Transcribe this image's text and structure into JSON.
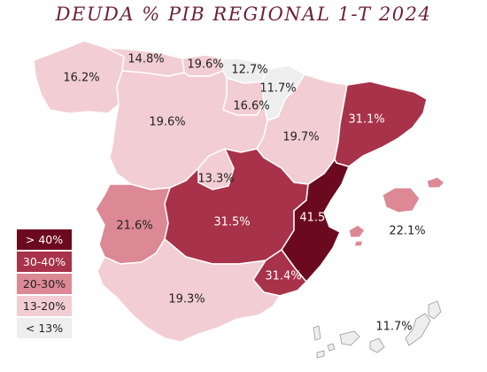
{
  "title": "DEUDA % PIB REGIONAL 1-T 2024",
  "colors": {
    "gt40": "#6b0a1f",
    "30_40": "#a83249",
    "20_30": "#dc8895",
    "13_20": "#f2cdd3",
    "lt13": "#eeeeee",
    "border": "#ffffff",
    "text_dark": "#222222",
    "text_light": "#ffffff"
  },
  "regions": [
    {
      "name": "Galicia",
      "value": "16.2%",
      "bucket": "13_20"
    },
    {
      "name": "Asturias",
      "value": "14.8%",
      "bucket": "13_20"
    },
    {
      "name": "Cantabria",
      "value": "19.6%",
      "bucket": "13_20"
    },
    {
      "name": "País Vasco",
      "value": "12.7%",
      "bucket": "lt13"
    },
    {
      "name": "Navarra",
      "value": "11.7%",
      "bucket": "lt13"
    },
    {
      "name": "La Rioja",
      "value": "16.6%",
      "bucket": "13_20"
    },
    {
      "name": "Castilla y León",
      "value": "19.6%",
      "bucket": "13_20"
    },
    {
      "name": "Aragón",
      "value": "19.7%",
      "bucket": "13_20"
    },
    {
      "name": "Cataluña",
      "value": "31.1%",
      "bucket": "30_40"
    },
    {
      "name": "Madrid",
      "value": "13.3%",
      "bucket": "13_20"
    },
    {
      "name": "Extremadura",
      "value": "21.6%",
      "bucket": "20_30"
    },
    {
      "name": "Castilla-La Mancha",
      "value": "31.5%",
      "bucket": "30_40"
    },
    {
      "name": "Comunidad Valenciana",
      "value": "41.5%",
      "bucket": "gt40"
    },
    {
      "name": "Murcia",
      "value": "31.4%",
      "bucket": "30_40"
    },
    {
      "name": "Andalucía",
      "value": "19.3%",
      "bucket": "13_20"
    },
    {
      "name": "Baleares",
      "value": "22.1%",
      "bucket": "20_30"
    },
    {
      "name": "Canarias",
      "value": "11.7%",
      "bucket": "lt13"
    }
  ],
  "legend": [
    {
      "label": "> 40%",
      "bucket": "gt40"
    },
    {
      "label": "30-40%",
      "bucket": "30_40"
    },
    {
      "label": "20-30%",
      "bucket": "20_30"
    },
    {
      "label": "13-20%",
      "bucket": "13_20"
    },
    {
      "label": "< 13%",
      "bucket": "lt13"
    }
  ]
}
